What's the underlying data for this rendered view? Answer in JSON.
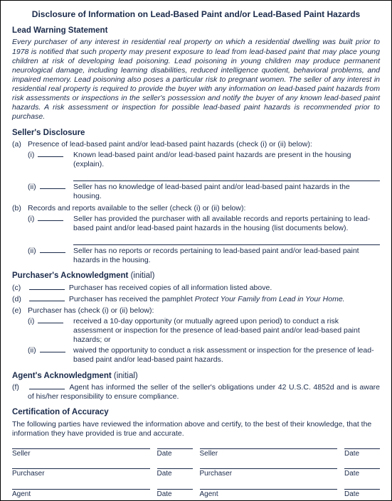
{
  "title": "Disclosure of Information on Lead-Based Paint and/or Lead-Based Paint Hazards",
  "colors": {
    "text": "#1a2a4a",
    "border": "#000000",
    "background": "#ffffff"
  },
  "typography": {
    "body_fontsize_pt": 10.5,
    "title_fontsize_pt": 12,
    "section_fontsize_pt": 11.5,
    "font_family": "Arial"
  },
  "sections": {
    "warning": {
      "heading": "Lead Warning Statement",
      "text": "Every purchaser of any interest in residential real property on which a residential dwelling was built prior to 1978 is notified that such property may present exposure to lead from lead-based paint that may place young children at risk of developing lead poisoning. Lead poisoning in young children may produce permanent neurological damage, including learning disabilities, reduced intelligence quotient, behavioral problems, and impaired memory. Lead poisoning also poses a particular risk to pregnant women. The seller of any interest in residential real property is required to provide the buyer with any information on lead-based paint hazards from risk assessments or inspections in the seller's possession and notify the buyer of any known lead-based paint hazards. A risk assessment or inspection for possible lead-based paint hazards is recommended prior to purchase."
    },
    "seller": {
      "heading": "Seller's Disclosure",
      "a": {
        "label": "(a)",
        "text": "Presence of lead-based paint and/or lead-based paint hazards (check (i) or (ii) below):",
        "i": "Known lead-based paint and/or lead-based paint hazards are present in the housing (explain).",
        "ii": "Seller has no knowledge of lead-based paint and/or lead-based paint hazards in the housing."
      },
      "b": {
        "label": "(b)",
        "text": "Records and reports available to the seller (check (i) or (ii) below):",
        "i": "Seller has provided the purchaser with all available records and reports pertaining to lead-based paint and/or lead-based paint hazards in the housing (list documents below).",
        "ii": "Seller has no reports or records pertaining to lead-based paint and/or lead-based paint hazards in the housing."
      }
    },
    "purchaser": {
      "heading": "Purchaser's Acknowledgment",
      "note": "(initial)",
      "c": {
        "label": "(c)",
        "text": "Purchaser has received copies of all information listed above."
      },
      "d": {
        "label": "(d)",
        "text_pre": "Purchaser has received the pamphlet ",
        "text_ital": "Protect Your Family from Lead in Your Home."
      },
      "e": {
        "label": "(e)",
        "text": "Purchaser has (check (i) or (ii) below):",
        "i": "received a 10-day opportunity (or mutually agreed upon period) to conduct a risk assessment or inspection for the presence of lead-based paint and/or lead-based paint hazards; or",
        "ii": "waived the opportunity to conduct a risk assessment or inspection for the presence of lead-based paint and/or lead-based paint hazards."
      }
    },
    "agent": {
      "heading": "Agent's Acknowledgment",
      "note": "(initial)",
      "f": {
        "label": "(f)",
        "text": "Agent has informed the seller of the seller's obligations under 42 U.S.C. 4852d and is aware of his/her responsibility to ensure compliance."
      }
    },
    "cert": {
      "heading": "Certification of Accuracy",
      "text": "The following parties have reviewed the information above and certify, to the best of their knowledge, that the information they have provided is true and accurate."
    }
  },
  "roman": {
    "i": "(i)",
    "ii": "(ii)"
  },
  "signatures": {
    "rows": [
      [
        "Seller",
        "Date",
        "Seller",
        "Date"
      ],
      [
        "Purchaser",
        "Date",
        "Purchaser",
        "Date"
      ],
      [
        "Agent",
        "Date",
        "Agent",
        "Date"
      ]
    ]
  }
}
